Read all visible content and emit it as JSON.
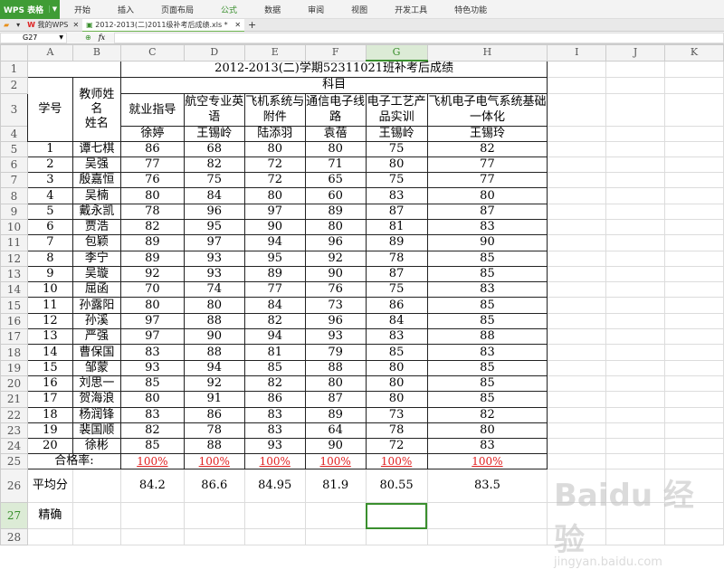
{
  "app": {
    "name": "WPS 表格",
    "menus": [
      "开始",
      "插入",
      "页面布局",
      "公式",
      "数据",
      "审阅",
      "视图",
      "开发工具",
      "特色功能"
    ],
    "active_menu": "公式"
  },
  "tabs": [
    {
      "label": "我的WPS"
    },
    {
      "label": "2012-2013(二)2011级补考后成绩.xls *"
    }
  ],
  "formula": {
    "cell_ref": "G27",
    "fx": "fx",
    "value": ""
  },
  "columns": [
    "A",
    "B",
    "C",
    "D",
    "E",
    "F",
    "G",
    "H",
    "I",
    "J",
    "K"
  ],
  "selected_column": "G",
  "sheet": {
    "title": "2012-2013(二)学期52311021班补考后成绩",
    "col_xuehao": "学号",
    "col_teacher": "教师姓名\n姓名",
    "subject_header": "科目",
    "subjects": [
      "就业指导",
      "航空专业英语",
      "飞机系统与附件",
      "通信电子线路",
      "电子工艺产品实训",
      "飞机电子电气系统基础一体化"
    ],
    "teachers": [
      "徐婷",
      "王锡岭",
      "陆添羽",
      "袁蓓",
      "王锡岭",
      "王锡玲"
    ],
    "students": [
      [
        1,
        "谭七棋",
        86,
        68,
        80,
        80,
        75,
        82
      ],
      [
        2,
        "吴强",
        77,
        82,
        72,
        71,
        80,
        77
      ],
      [
        3,
        "殷嘉恒",
        76,
        75,
        72,
        65,
        75,
        77
      ],
      [
        4,
        "吴楠",
        80,
        84,
        80,
        60,
        83,
        80
      ],
      [
        5,
        "戴永凯",
        78,
        96,
        97,
        89,
        87,
        87
      ],
      [
        6,
        "贾浩",
        82,
        95,
        90,
        80,
        81,
        83
      ],
      [
        7,
        "包颖",
        89,
        97,
        94,
        96,
        89,
        90
      ],
      [
        8,
        "李宁",
        89,
        93,
        95,
        92,
        78,
        85
      ],
      [
        9,
        "吴璇",
        92,
        93,
        89,
        90,
        87,
        85
      ],
      [
        10,
        "屈函",
        70,
        74,
        77,
        76,
        75,
        83
      ],
      [
        11,
        "孙露阳",
        80,
        80,
        84,
        73,
        86,
        85
      ],
      [
        12,
        "孙溪",
        97,
        88,
        82,
        96,
        84,
        85
      ],
      [
        13,
        "严强",
        97,
        90,
        94,
        93,
        83,
        88
      ],
      [
        14,
        "曹保国",
        83,
        88,
        81,
        79,
        85,
        83
      ],
      [
        15,
        "邹蒙",
        93,
        94,
        85,
        88,
        80,
        85
      ],
      [
        16,
        "刘思一",
        85,
        92,
        82,
        80,
        80,
        85
      ],
      [
        17,
        "贺海浪",
        80,
        91,
        86,
        87,
        80,
        85
      ],
      [
        18,
        "杨润锋",
        83,
        86,
        83,
        89,
        73,
        82
      ],
      [
        19,
        "裴国顺",
        82,
        78,
        83,
        64,
        78,
        80
      ],
      [
        20,
        "徐彬",
        85,
        88,
        93,
        90,
        72,
        83
      ]
    ],
    "pass_label": "合格率:",
    "pass_rates": [
      "100%",
      "100%",
      "100%",
      "100%",
      "100%",
      "100%"
    ],
    "avg_label": "平均分",
    "averages": [
      "84.2",
      "86.6",
      "84.95",
      "81.9",
      "80.55",
      "83.5"
    ],
    "exact_label": "精确",
    "selected_cell": "G27"
  },
  "watermark": {
    "logo": "Bai du 经验",
    "url": "jingyan.baidu.com"
  }
}
